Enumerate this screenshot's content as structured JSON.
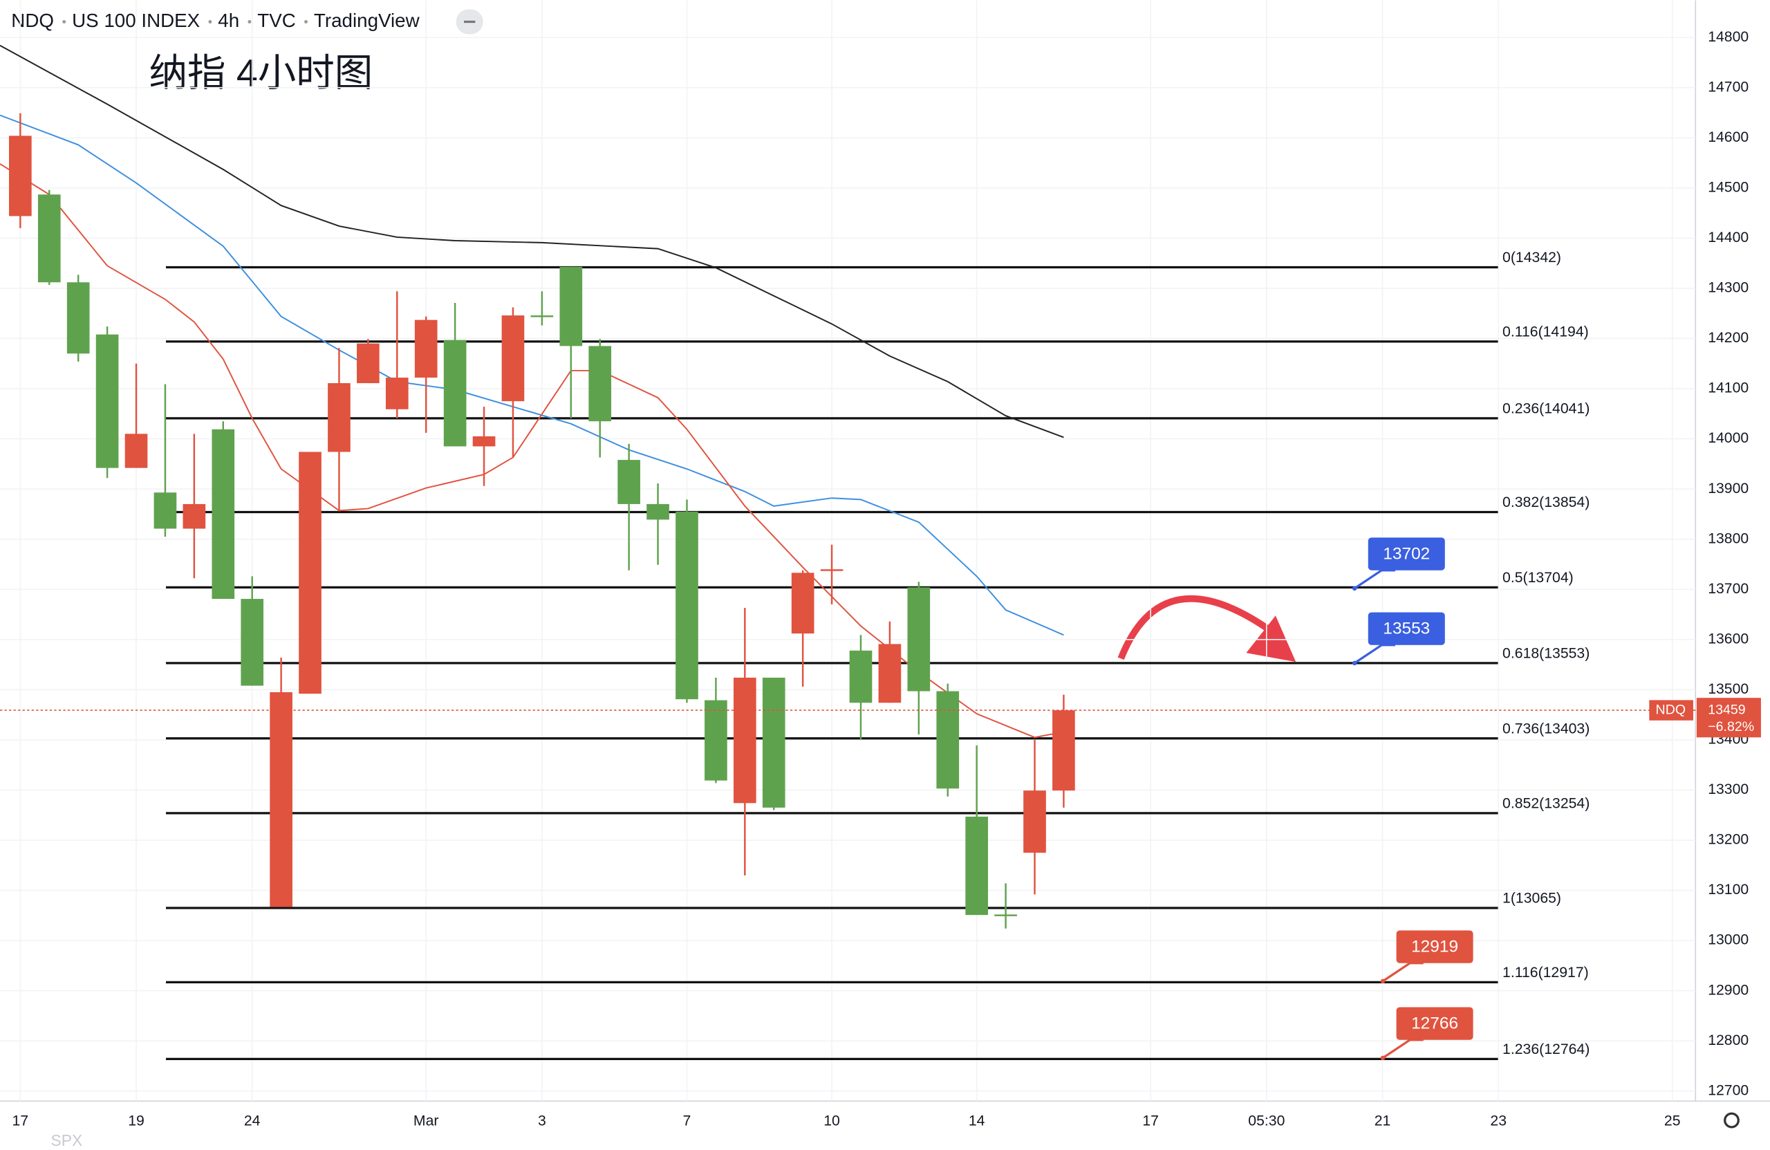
{
  "header": [
    "NDQ",
    "US 100 INDEX",
    "4h",
    "TVC",
    "TradingView"
  ],
  "chart_data": {
    "type": "candlestick",
    "title": "纳指 4小时图",
    "up_color": "#e0533f",
    "down_color": "#5fa24e",
    "open": [
      14444,
      14487,
      14312,
      14208,
      13942,
      13893,
      13821,
      14019,
      13681,
      13067,
      13492,
      13974,
      14111,
      14059,
      14122,
      14197,
      13985,
      14075,
      14246,
      14343,
      14185,
      13958,
      13870,
      13855,
      13479,
      13274,
      13524,
      13612,
      13739,
      13578,
      13474,
      13704,
      13497,
      13247,
      13052,
      13175,
      13299
    ],
    "high": [
      14649,
      14496,
      14327,
      14224,
      14150,
      14109,
      14010,
      14035,
      13726,
      13564,
      13974,
      14181,
      14199,
      14294,
      14244,
      14271,
      14064,
      14262,
      14294,
      14343,
      14199,
      13990,
      13911,
      13879,
      13524,
      13663,
      13524,
      13738,
      13789,
      13609,
      13636,
      13715,
      13512,
      13389,
      13114,
      13400,
      13490
    ],
    "low": [
      14420,
      14307,
      14154,
      13922,
      13942,
      13805,
      13722,
      13681,
      13508,
      13067,
      13492,
      13857,
      14111,
      14041,
      14012,
      13985,
      13906,
      13963,
      14226,
      14041,
      13963,
      13738,
      13749,
      13474,
      13314,
      13130,
      13260,
      13506,
      13670,
      13400,
      13474,
      13411,
      13287,
      13051,
      13024,
      13092,
      13265
    ],
    "close": [
      14604,
      14312,
      14170,
      13942,
      14010,
      13821,
      13870,
      13681,
      13508,
      13495,
      13974,
      14111,
      14190,
      14122,
      14237,
      13985,
      14005,
      14246,
      14244,
      14185,
      14035,
      13870,
      13839,
      13481,
      13319,
      13524,
      13265,
      13733,
      13740,
      13474,
      13591,
      13497,
      13303,
      13051,
      13051,
      13299,
      13459
    ],
    "lines": [
      {
        "color": "#222222",
        "x": [
          -0.7,
          3,
          7,
          9,
          11,
          13,
          15,
          18,
          22,
          24,
          26,
          28,
          30,
          32,
          34,
          36
        ],
        "values": [
          14784,
          14667,
          14537,
          14465,
          14424,
          14402,
          14395,
          14391,
          14379,
          14341,
          14285,
          14229,
          14165,
          14114,
          14046,
          14003
        ]
      },
      {
        "color": "#3d8fe0",
        "x": [
          -0.7,
          2,
          4,
          7,
          9,
          11,
          13,
          15,
          17,
          19,
          21,
          23,
          25,
          26,
          28,
          29,
          31,
          33,
          34,
          36
        ],
        "values": [
          14645,
          14586,
          14510,
          14384,
          14244,
          14177,
          14114,
          14098,
          14064,
          14030,
          13978,
          13940,
          13895,
          13866,
          13882,
          13879,
          13834,
          13726,
          13659,
          13609
        ]
      },
      {
        "color": "#e0533f",
        "x": [
          -0.7,
          1,
          3,
          5,
          6,
          7,
          8,
          9,
          11,
          12,
          14,
          16,
          17,
          19,
          20,
          21,
          22,
          23,
          25,
          27,
          29,
          31,
          33,
          35,
          36
        ],
        "values": [
          14548,
          14487,
          14345,
          14278,
          14233,
          14159,
          14041,
          13940,
          13857,
          13861,
          13902,
          13929,
          13963,
          14136,
          14136,
          14109,
          14082,
          14019,
          13866,
          13744,
          13627,
          13535,
          13452,
          13405,
          13416
        ]
      }
    ],
    "levels": [
      {
        "label": "0(14342)",
        "value": 14342
      },
      {
        "label": "0.116(14194)",
        "value": 14194
      },
      {
        "label": "0.236(14041)",
        "value": 14041
      },
      {
        "label": "0.382(13854)",
        "value": 13854
      },
      {
        "label": "0.5(13704)",
        "value": 13704
      },
      {
        "label": "0.618(13553)",
        "value": 13553
      },
      {
        "label": "0.736(13403)",
        "value": 13403
      },
      {
        "label": "0.852(13254)",
        "value": 13254
      },
      {
        "label": "1(13065)",
        "value": 13065
      },
      {
        "label": "1.116(12917)",
        "value": 12917
      },
      {
        "label": "1.236(12764)",
        "value": 12764
      }
    ],
    "price_tags": [
      {
        "value": 13702,
        "color": "#3a5fe0"
      },
      {
        "value": 13553,
        "color": "#3a5fe0"
      },
      {
        "value": 12919,
        "color": "#e0533f"
      },
      {
        "value": 12766,
        "color": "#e0533f"
      }
    ],
    "last": {
      "symbol": "NDQ",
      "value": 13459,
      "change": "−6.82%"
    },
    "ylim": [
      12680,
      14874
    ],
    "yticks": [
      12700,
      12800,
      12900,
      13000,
      13100,
      13200,
      13300,
      13400,
      13500,
      13600,
      13700,
      13800,
      13900,
      14000,
      14100,
      14200,
      14300,
      14400,
      14500,
      14600,
      14700,
      14800
    ],
    "xlim": [
      -0.7,
      57.8
    ],
    "xticks": [
      {
        "value": 0,
        "label": "17"
      },
      {
        "value": 4,
        "label": "19"
      },
      {
        "value": 8,
        "label": "24"
      },
      {
        "value": 14,
        "label": "Mar"
      },
      {
        "value": 18,
        "label": "3"
      },
      {
        "value": 23,
        "label": "7"
      },
      {
        "value": 28,
        "label": "10"
      },
      {
        "value": 33,
        "label": "14"
      },
      {
        "value": 39,
        "label": "17"
      },
      {
        "value": 43,
        "label": "05:30"
      },
      {
        "value": 47,
        "label": "21"
      },
      {
        "value": 51,
        "label": "23"
      },
      {
        "value": 57,
        "label": "25"
      }
    ],
    "grid": true,
    "footer": "SPX"
  }
}
